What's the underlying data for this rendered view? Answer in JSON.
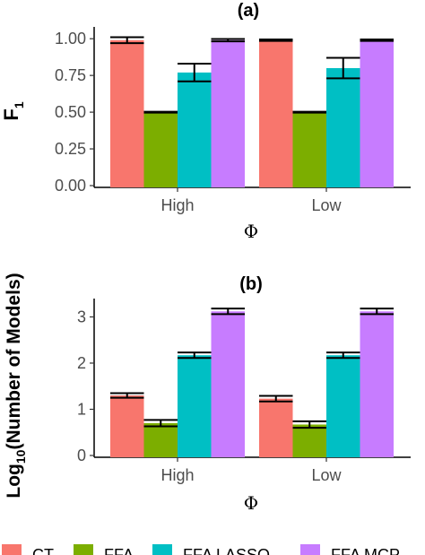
{
  "chart_data": [
    {
      "type": "bar",
      "title": "(a)",
      "xlabel": "Φ",
      "ylabel_main": "F",
      "ylabel_sub": "1",
      "categories": [
        "High",
        "Low"
      ],
      "ylim": [
        0,
        1.05
      ],
      "yticks": [
        0.0,
        0.25,
        0.5,
        0.75,
        1.0
      ],
      "ytick_labels": [
        "0.00",
        "0.25",
        "0.50",
        "0.75",
        "1.00"
      ],
      "series": [
        {
          "name": "CT",
          "values": [
            0.99,
            0.99
          ],
          "err": [
            0.02,
            0.005
          ]
        },
        {
          "name": "FFA",
          "values": [
            0.5,
            0.5
          ],
          "err": [
            0.003,
            0.003
          ]
        },
        {
          "name": "FFA LASSO",
          "values": [
            0.77,
            0.8
          ],
          "err": [
            0.06,
            0.07
          ]
        },
        {
          "name": "FFA MCP",
          "values": [
            0.99,
            0.99
          ],
          "err": [
            0.008,
            0.005
          ]
        }
      ]
    },
    {
      "type": "bar",
      "title": "(b)",
      "xlabel": "Φ",
      "ylabel_pre": "Log",
      "ylabel_sub": "10",
      "ylabel_post": "(Number of Models)",
      "categories": [
        "High",
        "Low"
      ],
      "ylim": [
        0,
        3.3
      ],
      "yticks": [
        0,
        1,
        2,
        3
      ],
      "ytick_labels": [
        "0",
        "1",
        "2",
        "3"
      ],
      "series": [
        {
          "name": "CT",
          "values": [
            1.3,
            1.23
          ],
          "err": [
            0.05,
            0.06
          ]
        },
        {
          "name": "FFA",
          "values": [
            0.7,
            0.67
          ],
          "err": [
            0.07,
            0.07
          ]
        },
        {
          "name": "FFA LASSO",
          "values": [
            2.17,
            2.17
          ],
          "err": [
            0.06,
            0.06
          ]
        },
        {
          "name": "FFA MCP",
          "values": [
            3.12,
            3.12
          ],
          "err": [
            0.06,
            0.06
          ]
        }
      ]
    }
  ],
  "legend": {
    "items": [
      {
        "label": "CT",
        "color": "#F8766D"
      },
      {
        "label": "FFA",
        "color": "#7CAE00"
      },
      {
        "label": "FFA LASSO",
        "color": "#00BFC4"
      },
      {
        "label": "FFA MCP",
        "color": "#C77CFF"
      }
    ]
  }
}
